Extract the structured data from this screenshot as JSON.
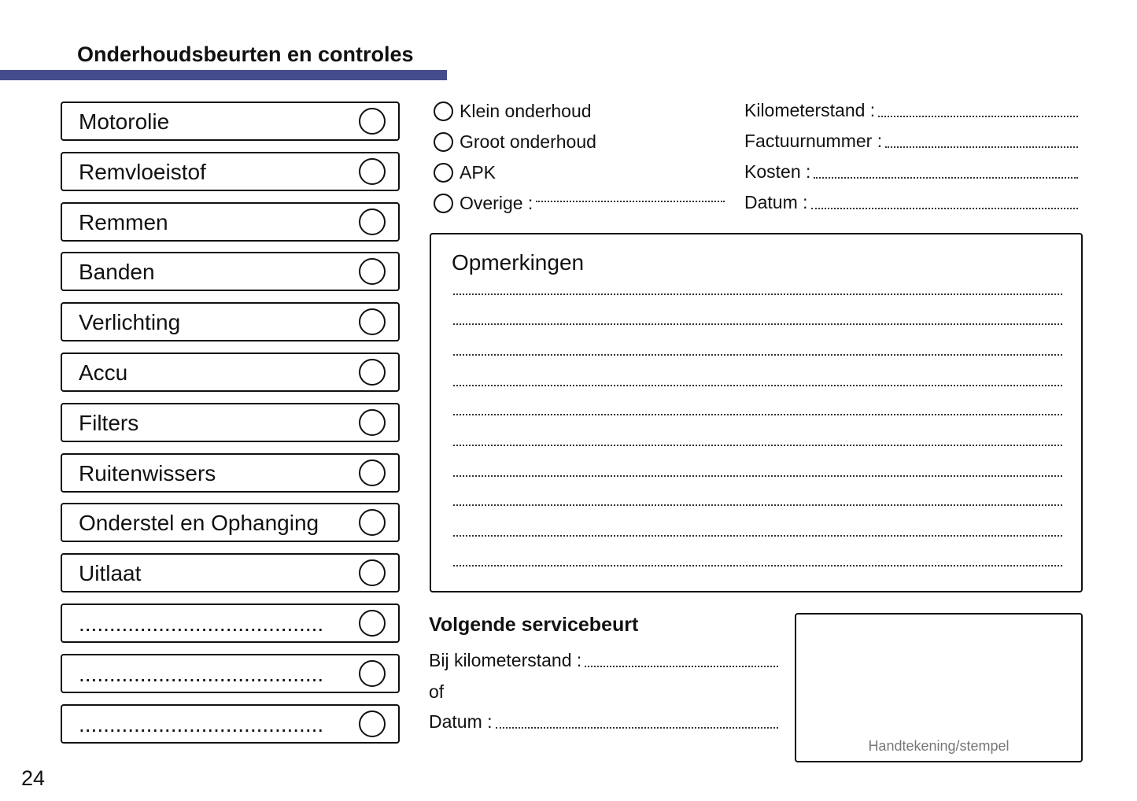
{
  "header": {
    "title": "Onderhoudsbeurten en controles",
    "accent_color": "#454b8c"
  },
  "checklist": [
    {
      "label": "Motorolie"
    },
    {
      "label": "Remvloeistof"
    },
    {
      "label": "Remmen"
    },
    {
      "label": "Banden"
    },
    {
      "label": "Verlichting"
    },
    {
      "label": "Accu"
    },
    {
      "label": "Filters"
    },
    {
      "label": "Ruitenwissers"
    },
    {
      "label": "Onderstel en Ophanging"
    },
    {
      "label": "Uitlaat"
    },
    {
      "label": "........................................"
    },
    {
      "label": "........................................"
    },
    {
      "label": "........................................"
    }
  ],
  "service_type": [
    {
      "label": "Klein onderhoud"
    },
    {
      "label": "Groot onderhoud"
    },
    {
      "label": "APK"
    },
    {
      "label": "Overige :"
    }
  ],
  "fields": [
    {
      "label": "Kilometerstand :"
    },
    {
      "label": "Factuurnummer :"
    },
    {
      "label": "Kosten :"
    },
    {
      "label": "Datum :"
    }
  ],
  "remarks": {
    "title": "Opmerkingen"
  },
  "next_service": {
    "title": "Volgende servicebeurt",
    "km_label": "Bij kilometerstand :",
    "or_label": "of",
    "date_label": "Datum :"
  },
  "stamp": {
    "label": "Handtekening/stempel"
  },
  "page_number": "24"
}
